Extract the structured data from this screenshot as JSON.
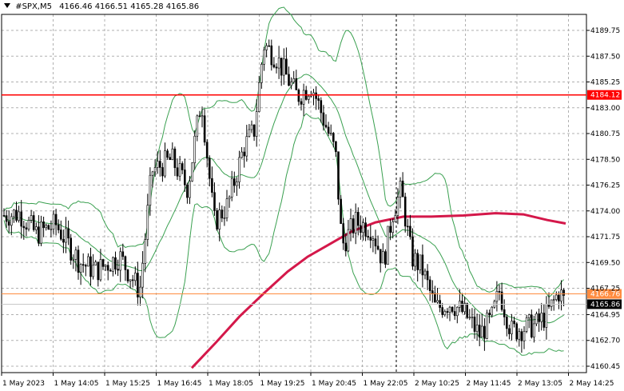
{
  "header": {
    "symbol": "#SPX,M5",
    "ohlc": "4166.46 4166.51 4165.28 4165.86",
    "symbol_menu_icon": "triangle-down-icon"
  },
  "chart_data": {
    "type": "candlestick",
    "y_axis": {
      "ticks": [
        "4189.75",
        "4187.50",
        "4185.25",
        "4183.00",
        "4180.75",
        "4178.50",
        "4176.25",
        "4174.00",
        "4171.75",
        "4169.50",
        "4167.25",
        "4164.95",
        "4162.70",
        "4160.45"
      ],
      "tick_values": [
        4189.75,
        4187.5,
        4185.25,
        4183.0,
        4180.75,
        4178.5,
        4176.25,
        4174.0,
        4171.75,
        4169.5,
        4167.25,
        4164.95,
        4162.7,
        4160.45
      ],
      "range": [
        4160.0,
        4191.4
      ]
    },
    "x_axis": {
      "ticks": [
        "1 May 2023",
        "1 May 14:05",
        "1 May 15:25",
        "1 May 16:45",
        "1 May 18:05",
        "1 May 19:25",
        "1 May 20:45",
        "1 May 22:05",
        "2 May 10:25",
        "2 May 11:45",
        "2 May 13:05",
        "2 May 14:25"
      ]
    },
    "price_lines": [
      {
        "label": "4184.12",
        "value": 4184.12,
        "color": "#ff0000"
      },
      {
        "label": "4166.76",
        "value": 4166.76,
        "color": "#ff8c40"
      },
      {
        "label": "4165.86",
        "value": 4165.86,
        "color": "#000000"
      }
    ],
    "grid": true,
    "colors": {
      "candle": "#000000",
      "bollinger": "#3aa050",
      "moving_average": "#d4184a",
      "background": "#ffffff"
    }
  }
}
